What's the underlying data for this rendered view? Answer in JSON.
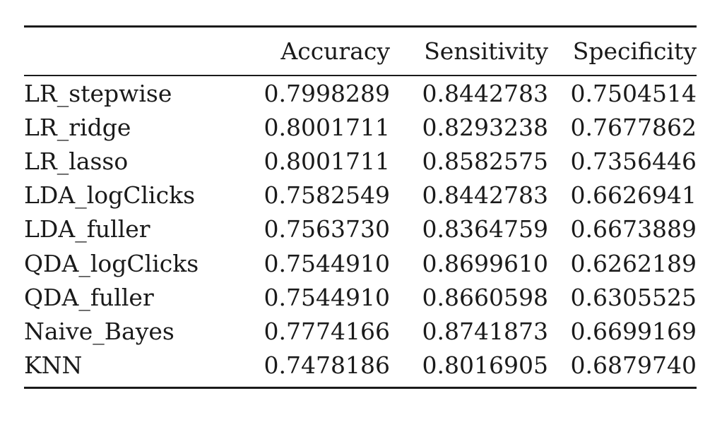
{
  "table": {
    "headers": [
      "",
      "Accuracy",
      "Sensitivity",
      "Specificity"
    ],
    "rows": [
      {
        "model": "LR_stepwise",
        "accuracy": "0.7998289",
        "sensitivity": "0.8442783",
        "specificity": "0.7504514"
      },
      {
        "model": "LR_ridge",
        "accuracy": "0.8001711",
        "sensitivity": "0.8293238",
        "specificity": "0.7677862"
      },
      {
        "model": "LR_lasso",
        "accuracy": "0.8001711",
        "sensitivity": "0.8582575",
        "specificity": "0.7356446"
      },
      {
        "model": "LDA_logClicks",
        "accuracy": "0.7582549",
        "sensitivity": "0.8442783",
        "specificity": "0.6626941"
      },
      {
        "model": "LDA_fuller",
        "accuracy": "0.7563730",
        "sensitivity": "0.8364759",
        "specificity": "0.6673889"
      },
      {
        "model": "QDA_logClicks",
        "accuracy": "0.7544910",
        "sensitivity": "0.8699610",
        "specificity": "0.6262189"
      },
      {
        "model": "QDA_fuller",
        "accuracy": "0.7544910",
        "sensitivity": "0.8660598",
        "specificity": "0.6305525"
      },
      {
        "model": "Naive_Bayes",
        "accuracy": "0.7774166",
        "sensitivity": "0.8741873",
        "specificity": "0.6699169"
      },
      {
        "model": "KNN",
        "accuracy": "0.7478186",
        "sensitivity": "0.8016905",
        "specificity": "0.6879740"
      }
    ]
  }
}
